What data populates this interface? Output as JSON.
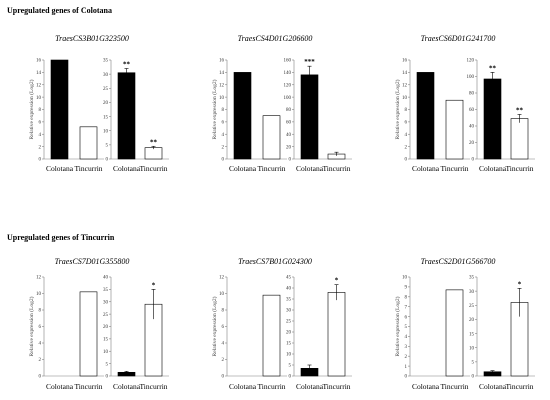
{
  "sections": [
    {
      "title": "Upregulated genes of Colotana"
    },
    {
      "title": "Upregulated genes of Tincurrin"
    }
  ],
  "categories": [
    "Colotana",
    "Tincurrin"
  ],
  "y_axis_label": "Relative expression (Log2)",
  "colors": {
    "colotana": "#000000",
    "tincurrin": "#ffffff",
    "axis": "#808080",
    "bar_edge": "#000000"
  },
  "chart_data": [
    {
      "section": 0,
      "gene": "TraesCS3B01G323500",
      "type": "bar",
      "categories": [
        "Colotana",
        "Tincurrin"
      ],
      "log2": {
        "values": [
          16,
          5.2
        ],
        "ylim": [
          0,
          16
        ],
        "ticks": [
          0,
          2,
          4,
          6,
          8,
          10,
          12,
          14,
          16
        ]
      },
      "fold": {
        "values": [
          30.5,
          4
        ],
        "errors": [
          1.5,
          0.5
        ],
        "ylim": [
          0,
          35
        ],
        "ticks": [
          0,
          5,
          10,
          15,
          20,
          25,
          30,
          35
        ],
        "significance": [
          "**",
          "**"
        ]
      }
    },
    {
      "section": 0,
      "gene": "TraesCS4D01G206600",
      "type": "bar",
      "categories": [
        "Colotana",
        "Tincurrin"
      ],
      "log2": {
        "values": [
          14,
          7
        ],
        "ylim": [
          0,
          16
        ],
        "ticks": [
          0,
          2,
          4,
          6,
          8,
          10,
          12,
          14,
          16
        ]
      },
      "fold": {
        "values": [
          136,
          8
        ],
        "errors": [
          14,
          3
        ],
        "ylim": [
          0,
          160
        ],
        "ticks": [
          0,
          20,
          40,
          60,
          80,
          100,
          120,
          140,
          160
        ],
        "significance": [
          "***",
          ""
        ]
      }
    },
    {
      "section": 0,
      "gene": "TraesCS6D01G241700",
      "type": "bar",
      "categories": [
        "Colotana",
        "Tincurrin"
      ],
      "log2": {
        "values": [
          14,
          9.5
        ],
        "ylim": [
          0,
          16
        ],
        "ticks": [
          0,
          2,
          4,
          6,
          8,
          10,
          12,
          14,
          16
        ]
      },
      "fold": {
        "values": [
          97,
          49
        ],
        "errors": [
          8,
          5
        ],
        "ylim": [
          0,
          120
        ],
        "ticks": [
          0,
          20,
          40,
          60,
          80,
          100,
          120
        ],
        "significance": [
          "**",
          "**"
        ]
      }
    },
    {
      "section": 1,
      "gene": "TraesCS7D01G355800",
      "type": "bar",
      "categories": [
        "Colotana",
        "Tincurrin"
      ],
      "log2": {
        "values": [
          0,
          10.2
        ],
        "ylim": [
          0,
          12
        ],
        "ticks": [
          0,
          2,
          4,
          6,
          8,
          10,
          12
        ]
      },
      "fold": {
        "values": [
          1.5,
          29
        ],
        "errors": [
          0.4,
          6
        ],
        "ylim": [
          0,
          40
        ],
        "ticks": [
          0,
          5,
          10,
          15,
          20,
          25,
          30,
          35,
          40
        ],
        "significance": [
          "",
          "*"
        ]
      }
    },
    {
      "section": 1,
      "gene": "TraesCS7B01G024300",
      "type": "bar",
      "categories": [
        "Colotana",
        "Tincurrin"
      ],
      "log2": {
        "values": [
          0,
          9.8
        ],
        "ylim": [
          0,
          12
        ],
        "ticks": [
          0,
          2,
          4,
          6,
          8,
          10,
          12
        ]
      },
      "fold": {
        "values": [
          3.5,
          38
        ],
        "errors": [
          1.5,
          3.5
        ],
        "ylim": [
          0,
          45
        ],
        "ticks": [
          0,
          5,
          10,
          15,
          20,
          25,
          30,
          35,
          40,
          45
        ],
        "significance": [
          "",
          "*"
        ]
      }
    },
    {
      "section": 1,
      "gene": "TraesCS2D01G566700",
      "type": "bar",
      "categories": [
        "Colotana",
        "Tincurrin"
      ],
      "log2": {
        "values": [
          0,
          8.7
        ],
        "ylim": [
          0,
          10
        ],
        "ticks": [
          0,
          1,
          2,
          3,
          4,
          5,
          6,
          7,
          8,
          9,
          10
        ]
      },
      "fold": {
        "values": [
          1.5,
          26
        ],
        "errors": [
          0.4,
          5
        ],
        "ylim": [
          0,
          35
        ],
        "ticks": [
          0,
          5,
          10,
          15,
          20,
          25,
          30,
          35
        ],
        "significance": [
          "",
          "*"
        ]
      }
    }
  ]
}
